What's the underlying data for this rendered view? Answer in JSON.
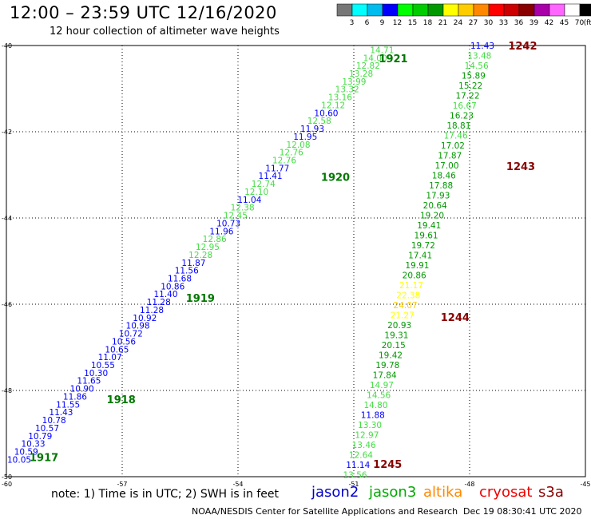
{
  "title": "12:00 – 23:59 UTC 12/16/2020",
  "subtitle": "12 hour collection of altimeter wave heights",
  "note": "note: 1) Time is in UTC; 2) SWH is in feet",
  "footer": "NOAA/NESDIS Center for Satellite Applications and Research",
  "timestamp": "Dec 19 08:30:41 UTC 2020",
  "legend": [
    {
      "name": "jason2",
      "color": "#0000cc"
    },
    {
      "name": "jason3",
      "color": "#00aa00"
    },
    {
      "name": "altika",
      "color": "#ff8800"
    },
    {
      "name": "cryosat",
      "color": "#ee0000"
    },
    {
      "name": "s3a",
      "color": "#880000"
    }
  ],
  "colorbar": {
    "labels": [
      "3",
      "6",
      "9",
      "12",
      "15",
      "18",
      "21",
      "24",
      "27",
      "30",
      "33",
      "36",
      "39",
      "42",
      "45",
      "70",
      "(ft)"
    ],
    "colors": [
      "#777777",
      "#00ffff",
      "#00bbee",
      "#0000ff",
      "#00ff00",
      "#00cc00",
      "#009900",
      "#ffff00",
      "#ffcc00",
      "#ff8800",
      "#ff0000",
      "#cc0000",
      "#880000",
      "#aa00aa",
      "#ff66ff",
      "#ffffff",
      "#000000"
    ]
  },
  "chart_data": {
    "type": "scatter",
    "xlabel": "",
    "ylabel": "",
    "xlim": [
      -60,
      -45
    ],
    "ylim": [
      -50,
      -40
    ],
    "xticks": [
      -57,
      -54,
      -51,
      -48,
      -45
    ],
    "yticks": [
      -40,
      -42,
      -44,
      -46,
      -48,
      -50
    ],
    "xtick_labels": [
      "-57",
      "-54",
      "-51",
      "-48",
      "-45"
    ],
    "ytick_labels": [
      "-40",
      "-42",
      "-44",
      "-46",
      "-48",
      "-50"
    ],
    "corner_label": "-60",
    "grid": true,
    "pass_labels": [
      {
        "text": "1921",
        "x": -50.35,
        "y": -40.3,
        "color": "#007700"
      },
      {
        "text": "1920",
        "x": -51.85,
        "y": -43.05,
        "color": "#007700"
      },
      {
        "text": "1919",
        "x": -55.35,
        "y": -45.85,
        "color": "#007700"
      },
      {
        "text": "1918",
        "x": -57.4,
        "y": -48.2,
        "color": "#007700"
      },
      {
        "text": "1917",
        "x": -59.4,
        "y": -49.55,
        "color": "#007700"
      },
      {
        "text": "1242",
        "x": -47.0,
        "y": -40.0,
        "color": "#880000"
      },
      {
        "text": "1243",
        "x": -47.05,
        "y": -42.8,
        "color": "#880000"
      },
      {
        "text": "1244",
        "x": -48.75,
        "y": -46.3,
        "color": "#880000"
      },
      {
        "text": "1245",
        "x": -50.5,
        "y": -49.7,
        "color": "#880000"
      }
    ],
    "tracks": [
      {
        "name": "pass-1917-1921",
        "x0": -60.0,
        "y0": -49.6,
        "x1": -50.6,
        "y1": -40.1,
        "values": [
          "10.05",
          "10.59",
          "10.33",
          "10.79",
          "10.57",
          "10.78",
          "11.43",
          "11.55",
          "11.86",
          "10.90",
          "11.65",
          "10.30",
          "10.55",
          "11.07",
          "10.65",
          "10.56",
          "10.72",
          "10.98",
          "10.92",
          "11.28",
          "11.28",
          "11.40",
          "10.86",
          "11.68",
          "11.56",
          "11.87",
          "12.28",
          "12.95",
          "12.86",
          "11.96",
          "10.73",
          "12.45",
          "12.38",
          "11.04",
          "12.10",
          "12.74",
          "11.41",
          "11.77",
          "12.76",
          "12.76",
          "12.08",
          "11.95",
          "11.93",
          "12.58",
          "10.60",
          "12.12",
          "13.16",
          "13.32",
          "13.99",
          "13.28",
          "12.82",
          "14.00",
          "14.71"
        ],
        "colors": [
          "#0000ff",
          "#0000ff",
          "#0000ff",
          "#0000ff",
          "#0000ff",
          "#0000ff",
          "#0000ff",
          "#0000ff",
          "#0000ff",
          "#0000ff",
          "#0000ff",
          "#0000ff",
          "#0000ff",
          "#0000ff",
          "#0000ff",
          "#0000ff",
          "#0000ff",
          "#0000ff",
          "#0000ff",
          "#0000ff",
          "#0000ff",
          "#0000ff",
          "#0000ff",
          "#0000ff",
          "#0000ff",
          "#0000ff",
          "#44dd44",
          "#44dd44",
          "#44dd44",
          "#0000ff",
          "#0000ff",
          "#44dd44",
          "#44dd44",
          "#0000ff",
          "#44dd44",
          "#44dd44",
          "#0000ff",
          "#0000ff",
          "#44dd44",
          "#44dd44",
          "#44dd44",
          "#0000ff",
          "#0000ff",
          "#44dd44",
          "#0000ff",
          "#44dd44",
          "#44dd44",
          "#44dd44",
          "#44dd44",
          "#44dd44",
          "#44dd44",
          "#44dd44",
          "#44dd44"
        ]
      },
      {
        "name": "pass-1242-1245",
        "x0": -48.0,
        "y0": -40.0,
        "x1": -51.3,
        "y1": -49.95,
        "values": [
          "11.43",
          "13.48",
          "14.56",
          "15.89",
          "15.22",
          "17.22",
          "16.67",
          "16.23",
          "18.81",
          "17.46",
          "17.02",
          "17.87",
          "17.00",
          "18.46",
          "17.88",
          "17.93",
          "20.64",
          "19.20",
          "19.41",
          "19.61",
          "19.72",
          "17.41",
          "19.91",
          "20.86",
          "21.17",
          "22.38",
          "24.07",
          "21.27",
          "20.93",
          "19.31",
          "20.15",
          "19.42",
          "19.78",
          "17.84",
          "14.97",
          "14.56",
          "14.80",
          "11.88",
          "13.30",
          "12.97",
          "13.46",
          "12.64",
          "11.14",
          "13.56"
        ],
        "colors": [
          "#0000ff",
          "#44dd44",
          "#44dd44",
          "#009900",
          "#009900",
          "#009900",
          "#44dd44",
          "#009900",
          "#009900",
          "#44dd44",
          "#009900",
          "#009900",
          "#009900",
          "#009900",
          "#009900",
          "#009900",
          "#009900",
          "#009900",
          "#009900",
          "#009900",
          "#009900",
          "#009900",
          "#009900",
          "#009900",
          "#ffff00",
          "#ffff00",
          "#ffcc00",
          "#ffff00",
          "#009900",
          "#009900",
          "#009900",
          "#009900",
          "#009900",
          "#009900",
          "#44dd44",
          "#44dd44",
          "#44dd44",
          "#0000ff",
          "#44dd44",
          "#44dd44",
          "#44dd44",
          "#44dd44",
          "#0000ff",
          "#44dd44"
        ]
      }
    ]
  }
}
